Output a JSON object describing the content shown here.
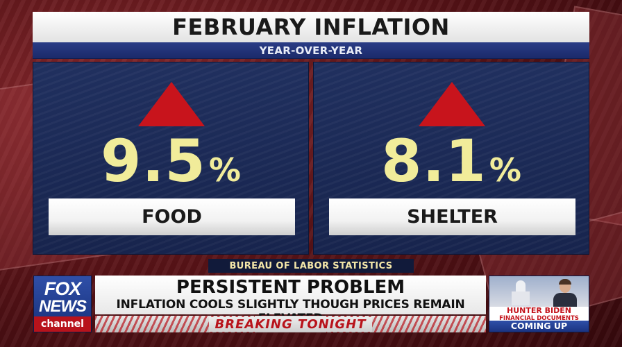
{
  "graphic": {
    "title": "FEBRUARY INFLATION",
    "subtitle": "YEAR-OVER-YEAR",
    "source": "BUREAU OF LABOR STATISTICS",
    "stats": [
      {
        "value": "9.5",
        "unit": "%",
        "category": "FOOD",
        "direction": "up",
        "arrow_color": "#c8141c"
      },
      {
        "value": "8.1",
        "unit": "%",
        "category": "SHELTER",
        "direction": "up",
        "arrow_color": "#c8141c"
      }
    ],
    "value_color": "#f1ec9a"
  },
  "lower_third": {
    "network_logo": {
      "line1": "FOX",
      "line2": "NEWS",
      "line3": "channel"
    },
    "headline": "PERSISTENT PROBLEM",
    "subheadline": "INFLATION COOLS SLIGHTLY THOUGH PRICES REMAIN ELEVATED",
    "banner": "BREAKING TONIGHT",
    "banner_color": "#b8131b"
  },
  "promo": {
    "name": "HUNTER BIDEN",
    "description": "FINANCIAL DOCUMENTS PROBE",
    "status": "COMING UP"
  }
}
